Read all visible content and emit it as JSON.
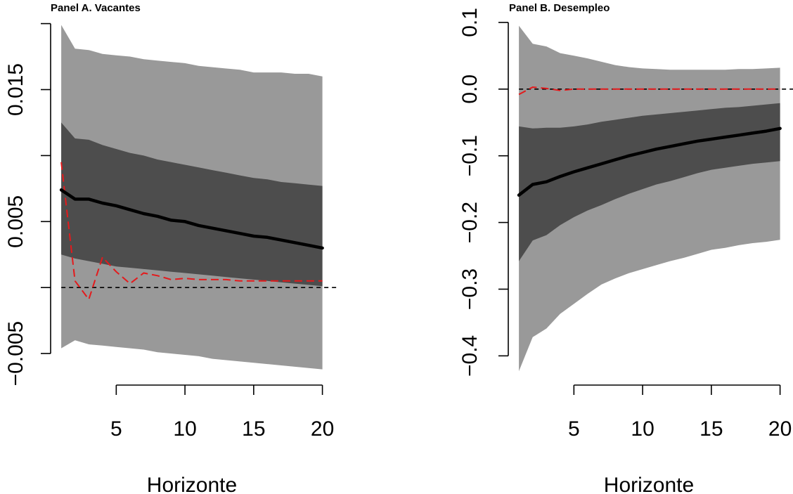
{
  "colors": {
    "outer_band": "#999999",
    "inner_band": "#4d4d4d",
    "median_line": "#000000",
    "red_line": "#e41a1c",
    "zero_line": "#000000",
    "background": "#ffffff"
  },
  "chart_data": [
    {
      "type": "area",
      "title": "Panel A. Vacantes",
      "xlabel": "Horizonte",
      "ylabel": "",
      "xlim": [
        1,
        20
      ],
      "ylim": [
        -0.005,
        0.02
      ],
      "x_ticks": [
        5,
        10,
        15,
        20
      ],
      "x_tick_labels": [
        "5",
        "10",
        "15",
        "20"
      ],
      "y_ticks": [
        -0.005,
        0.005,
        0.015
      ],
      "y_tick_labels": [
        "−0.005",
        "0.005",
        "0.015"
      ],
      "y_minor_ticks": [
        -0.005,
        0.0,
        0.005,
        0.01,
        0.015,
        0.02
      ],
      "grid": false,
      "x": [
        1,
        2,
        3,
        4,
        5,
        6,
        7,
        8,
        9,
        10,
        11,
        12,
        13,
        14,
        15,
        16,
        17,
        18,
        19,
        20
      ],
      "series": [
        {
          "role": "outer_upper",
          "values": [
            0.0199,
            0.0181,
            0.018,
            0.0177,
            0.0176,
            0.0175,
            0.0173,
            0.0172,
            0.0171,
            0.017,
            0.0168,
            0.0167,
            0.0166,
            0.0165,
            0.0163,
            0.0163,
            0.0163,
            0.0162,
            0.0162,
            0.016
          ]
        },
        {
          "role": "outer_lower",
          "values": [
            -0.0046,
            -0.004,
            -0.0043,
            -0.0044,
            -0.0045,
            -0.0046,
            -0.0047,
            -0.0049,
            -0.005,
            -0.0051,
            -0.0052,
            -0.0054,
            -0.0055,
            -0.0056,
            -0.0057,
            -0.0058,
            -0.0059,
            -0.006,
            -0.0061,
            -0.0062
          ]
        },
        {
          "role": "inner_upper",
          "values": [
            0.0125,
            0.0113,
            0.0112,
            0.0108,
            0.0105,
            0.0102,
            0.01,
            0.0097,
            0.0095,
            0.0093,
            0.0091,
            0.0089,
            0.0087,
            0.0085,
            0.0083,
            0.0082,
            0.008,
            0.0079,
            0.0078,
            0.0077
          ]
        },
        {
          "role": "inner_lower",
          "values": [
            0.0025,
            0.0022,
            0.002,
            0.0018,
            0.0016,
            0.0015,
            0.0014,
            0.0013,
            0.0012,
            0.0011,
            0.001,
            0.0009,
            0.0008,
            0.0007,
            0.0006,
            0.0005,
            0.0004,
            0.0003,
            0.0002,
            0.0001
          ]
        },
        {
          "role": "median",
          "values": [
            0.0074,
            0.0067,
            0.0067,
            0.0064,
            0.0062,
            0.0059,
            0.0056,
            0.0054,
            0.0051,
            0.005,
            0.0047,
            0.0045,
            0.0043,
            0.0041,
            0.0039,
            0.0038,
            0.0036,
            0.0034,
            0.0032,
            0.003
          ]
        },
        {
          "role": "red_dashed",
          "values": [
            0.0095,
            0.0005,
            -0.0009,
            0.0023,
            0.0012,
            0.0003,
            0.0011,
            0.0009,
            0.0006,
            0.0007,
            0.0006,
            0.0006,
            0.0006,
            0.0005,
            0.0005,
            0.0005,
            0.0005,
            0.0005,
            0.0005,
            0.0005
          ]
        }
      ],
      "reference_line": {
        "y": 0.0,
        "style": "dashed",
        "x_extent": [
          1,
          21
        ]
      }
    },
    {
      "type": "area",
      "title": "Panel B. Desempleo",
      "xlabel": "Horizonte",
      "ylabel": "",
      "xlim": [
        1,
        20
      ],
      "ylim": [
        -0.4,
        0.1
      ],
      "x_ticks": [
        5,
        10,
        15,
        20
      ],
      "x_tick_labels": [
        "5",
        "10",
        "15",
        "20"
      ],
      "y_ticks": [
        -0.4,
        -0.3,
        -0.2,
        -0.1,
        0.0,
        0.1
      ],
      "y_tick_labels": [
        "−0.4",
        "−0.3",
        "−0.2",
        "−0.1",
        "0.0",
        "0.1"
      ],
      "grid": false,
      "x": [
        1,
        2,
        3,
        4,
        5,
        6,
        7,
        8,
        9,
        10,
        11,
        12,
        13,
        14,
        15,
        16,
        17,
        18,
        19,
        20
      ],
      "series": [
        {
          "role": "outer_upper",
          "values": [
            0.095,
            0.068,
            0.064,
            0.054,
            0.05,
            0.046,
            0.041,
            0.036,
            0.033,
            0.031,
            0.03,
            0.029,
            0.029,
            0.029,
            0.029,
            0.029,
            0.03,
            0.03,
            0.031,
            0.032
          ]
        },
        {
          "role": "outer_lower",
          "values": [
            -0.423,
            -0.372,
            -0.359,
            -0.337,
            -0.322,
            -0.307,
            -0.293,
            -0.284,
            -0.276,
            -0.27,
            -0.264,
            -0.258,
            -0.253,
            -0.247,
            -0.241,
            -0.238,
            -0.234,
            -0.231,
            -0.229,
            -0.226
          ]
        },
        {
          "role": "inner_upper",
          "values": [
            -0.056,
            -0.059,
            -0.058,
            -0.058,
            -0.056,
            -0.053,
            -0.049,
            -0.046,
            -0.043,
            -0.04,
            -0.038,
            -0.036,
            -0.034,
            -0.032,
            -0.03,
            -0.028,
            -0.027,
            -0.025,
            -0.023,
            -0.021
          ]
        },
        {
          "role": "inner_lower",
          "values": [
            -0.258,
            -0.227,
            -0.219,
            -0.204,
            -0.192,
            -0.182,
            -0.174,
            -0.165,
            -0.157,
            -0.15,
            -0.143,
            -0.138,
            -0.132,
            -0.126,
            -0.121,
            -0.118,
            -0.115,
            -0.112,
            -0.11,
            -0.108
          ]
        },
        {
          "role": "median",
          "values": [
            -0.159,
            -0.143,
            -0.139,
            -0.131,
            -0.124,
            -0.118,
            -0.112,
            -0.106,
            -0.1,
            -0.095,
            -0.09,
            -0.086,
            -0.082,
            -0.078,
            -0.075,
            -0.072,
            -0.069,
            -0.066,
            -0.063,
            -0.059
          ]
        },
        {
          "role": "red_dashed",
          "values": [
            -0.008,
            0.003,
            0.001,
            -0.002,
            0.0,
            0.0,
            0.0,
            0.0,
            0.0,
            0.0,
            0.0,
            0.0,
            0.0,
            0.0,
            0.0,
            0.0,
            0.0,
            0.0,
            0.0,
            0.0
          ]
        }
      ],
      "reference_line": {
        "y": 0.0,
        "style": "dashed",
        "x_extent": [
          1,
          21
        ]
      }
    }
  ]
}
